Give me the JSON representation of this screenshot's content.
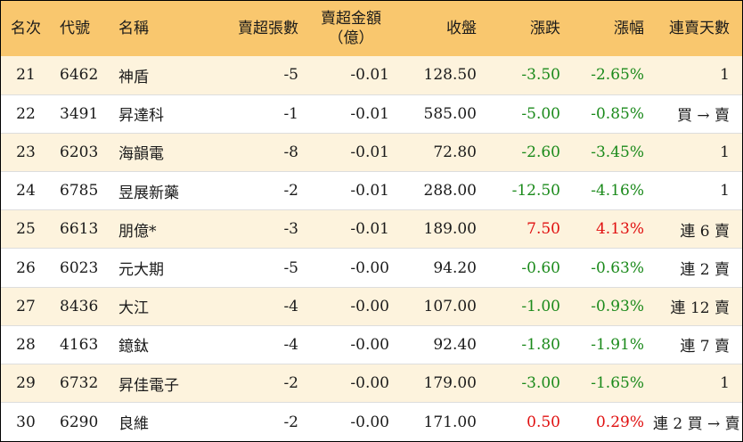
{
  "headers": {
    "rank": "名次",
    "code": "代號",
    "name": "名稱",
    "lots": "賣超張數",
    "amount_line1": "賣超金額",
    "amount_line2": "（億）",
    "close": "收盤",
    "change": "漲跌",
    "pct": "漲幅",
    "days": "連賣天數"
  },
  "colors": {
    "header_bg": "#f9c76e",
    "odd_row_bg": "#fdf3dd",
    "even_row_bg": "#ffffff",
    "negative": "#1b8a1b",
    "positive": "#e01010"
  },
  "rows": [
    {
      "rank": "21",
      "code": "6462",
      "name": "神盾",
      "lots": "-5",
      "amount": "-0.01",
      "close": "128.50",
      "change": "-3.50",
      "pct": "-2.65%",
      "days": "1",
      "dir": "neg"
    },
    {
      "rank": "22",
      "code": "3491",
      "name": "昇達科",
      "lots": "-1",
      "amount": "-0.01",
      "close": "585.00",
      "change": "-5.00",
      "pct": "-0.85%",
      "days": "買 → 賣",
      "dir": "neg"
    },
    {
      "rank": "23",
      "code": "6203",
      "name": "海韻電",
      "lots": "-8",
      "amount": "-0.01",
      "close": "72.80",
      "change": "-2.60",
      "pct": "-3.45%",
      "days": "1",
      "dir": "neg"
    },
    {
      "rank": "24",
      "code": "6785",
      "name": "昱展新藥",
      "lots": "-2",
      "amount": "-0.01",
      "close": "288.00",
      "change": "-12.50",
      "pct": "-4.16%",
      "days": "1",
      "dir": "neg"
    },
    {
      "rank": "25",
      "code": "6613",
      "name": "朋億*",
      "lots": "-3",
      "amount": "-0.01",
      "close": "189.00",
      "change": "7.50",
      "pct": "4.13%",
      "days": "連 6 賣",
      "dir": "pos"
    },
    {
      "rank": "26",
      "code": "6023",
      "name": "元大期",
      "lots": "-5",
      "amount": "-0.00",
      "close": "94.20",
      "change": "-0.60",
      "pct": "-0.63%",
      "days": "連 2 賣",
      "dir": "neg"
    },
    {
      "rank": "27",
      "code": "8436",
      "name": "大江",
      "lots": "-4",
      "amount": "-0.00",
      "close": "107.00",
      "change": "-1.00",
      "pct": "-0.93%",
      "days": "連 12 賣",
      "dir": "neg"
    },
    {
      "rank": "28",
      "code": "4163",
      "name": "鐿鈦",
      "lots": "-4",
      "amount": "-0.00",
      "close": "92.40",
      "change": "-1.80",
      "pct": "-1.91%",
      "days": "連 7 賣",
      "dir": "neg"
    },
    {
      "rank": "29",
      "code": "6732",
      "name": "昇佳電子",
      "lots": "-2",
      "amount": "-0.00",
      "close": "179.00",
      "change": "-3.00",
      "pct": "-1.65%",
      "days": "1",
      "dir": "neg"
    },
    {
      "rank": "30",
      "code": "6290",
      "name": "良維",
      "lots": "-2",
      "amount": "-0.00",
      "close": "171.00",
      "change": "0.50",
      "pct": "0.29%",
      "days": "連 2 買 → 賣",
      "dir": "pos"
    }
  ]
}
